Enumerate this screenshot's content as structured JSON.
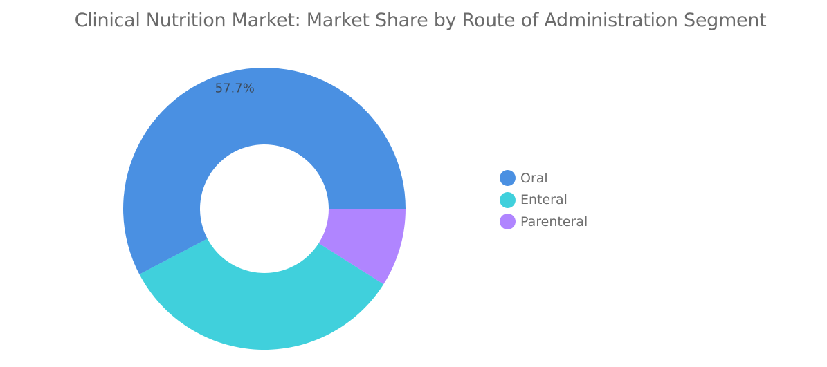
{
  "chart_data": {
    "type": "pie",
    "variant": "donut",
    "title": "Clinical Nutrition Market: Market Share by Route of Administration Segment",
    "unit": "%",
    "slices": [
      {
        "name": "Oral",
        "value": 57.7,
        "color": "#4a90e2",
        "label": "57.7%"
      },
      {
        "name": "Enteral",
        "value": 33.3,
        "color": "#40d0dc",
        "label": ""
      },
      {
        "name": "Parenteral",
        "value": 9.0,
        "color": "#b085ff",
        "label": ""
      }
    ],
    "legend_position": "right"
  }
}
